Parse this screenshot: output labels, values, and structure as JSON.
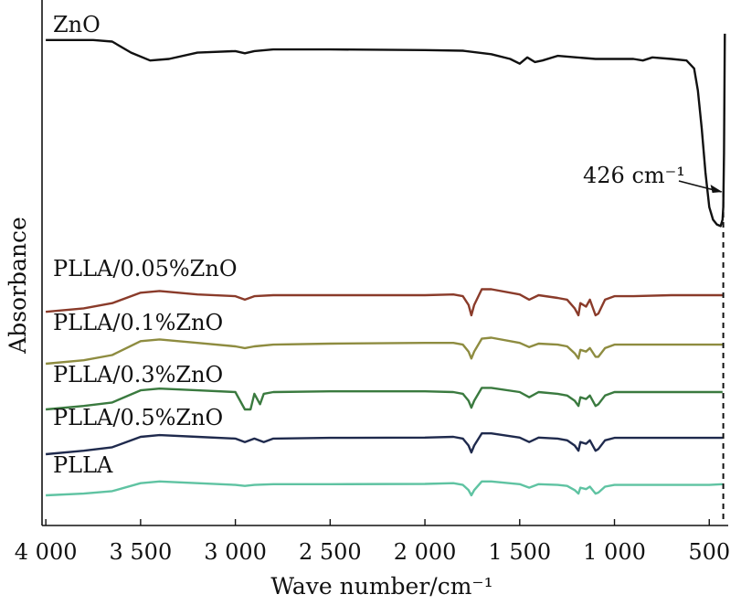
{
  "chart_data": {
    "type": "line",
    "xlabel": "Wave number/cm⁻¹",
    "ylabel": "Absorbance",
    "xlim": [
      4020,
      400
    ],
    "x_reversed": true,
    "grid": false,
    "xticks": [
      {
        "value": 4000,
        "label": "4 000"
      },
      {
        "value": 3500,
        "label": "3 500"
      },
      {
        "value": 3000,
        "label": "3 000"
      },
      {
        "value": 2500,
        "label": "2 500"
      },
      {
        "value": 2000,
        "label": "2 000"
      },
      {
        "value": 1500,
        "label": "1 500"
      },
      {
        "value": 1000,
        "label": "1 000"
      },
      {
        "value": 500,
        "label": "500"
      }
    ],
    "annotations": [
      {
        "text": "426 cm⁻¹",
        "x": 426,
        "style": "dashed-vertical-line-with-arrow"
      }
    ],
    "series": [
      {
        "name": "ZnO",
        "color": "#111111",
        "points": [
          [
            4000,
            0.96
          ],
          [
            3750,
            0.96
          ],
          [
            3650,
            0.955
          ],
          [
            3550,
            0.92
          ],
          [
            3450,
            0.895
          ],
          [
            3350,
            0.9
          ],
          [
            3200,
            0.92
          ],
          [
            3000,
            0.925
          ],
          [
            2950,
            0.918
          ],
          [
            2900,
            0.925
          ],
          [
            2800,
            0.93
          ],
          [
            2500,
            0.93
          ],
          [
            2000,
            0.928
          ],
          [
            1800,
            0.926
          ],
          [
            1650,
            0.915
          ],
          [
            1550,
            0.9
          ],
          [
            1500,
            0.885
          ],
          [
            1460,
            0.905
          ],
          [
            1420,
            0.89
          ],
          [
            1380,
            0.895
          ],
          [
            1300,
            0.91
          ],
          [
            1200,
            0.905
          ],
          [
            1100,
            0.9
          ],
          [
            1000,
            0.9
          ],
          [
            900,
            0.9
          ],
          [
            850,
            0.895
          ],
          [
            800,
            0.905
          ],
          [
            700,
            0.9
          ],
          [
            620,
            0.895
          ],
          [
            580,
            0.87
          ],
          [
            560,
            0.8
          ],
          [
            540,
            0.68
          ],
          [
            520,
            0.54
          ],
          [
            500,
            0.43
          ],
          [
            480,
            0.39
          ],
          [
            460,
            0.375
          ],
          [
            440,
            0.37
          ],
          [
            430,
            0.39
          ],
          [
            426,
            0.43
          ],
          [
            422,
            0.6
          ],
          [
            418,
            0.98
          ]
        ]
      },
      {
        "name": "PLLA/0.05%ZnO",
        "color": "#8a3b2a",
        "points": [
          [
            4000,
            0.01
          ],
          [
            3800,
            0.02
          ],
          [
            3650,
            0.035
          ],
          [
            3500,
            0.065
          ],
          [
            3400,
            0.07
          ],
          [
            3200,
            0.06
          ],
          [
            3000,
            0.055
          ],
          [
            2950,
            0.045
          ],
          [
            2900,
            0.055
          ],
          [
            2800,
            0.058
          ],
          [
            2500,
            0.058
          ],
          [
            2000,
            0.058
          ],
          [
            1850,
            0.06
          ],
          [
            1800,
            0.055
          ],
          [
            1770,
            0.03
          ],
          [
            1755,
            0.0
          ],
          [
            1740,
            0.03
          ],
          [
            1700,
            0.075
          ],
          [
            1650,
            0.075
          ],
          [
            1500,
            0.06
          ],
          [
            1450,
            0.045
          ],
          [
            1400,
            0.058
          ],
          [
            1300,
            0.05
          ],
          [
            1250,
            0.045
          ],
          [
            1210,
            0.02
          ],
          [
            1190,
            0.0
          ],
          [
            1180,
            0.035
          ],
          [
            1150,
            0.025
          ],
          [
            1130,
            0.045
          ],
          [
            1100,
            0.0
          ],
          [
            1085,
            0.005
          ],
          [
            1050,
            0.045
          ],
          [
            1000,
            0.055
          ],
          [
            900,
            0.055
          ],
          [
            700,
            0.058
          ],
          [
            500,
            0.058
          ],
          [
            430,
            0.058
          ]
        ]
      },
      {
        "name": "PLLA/0.1%ZnO",
        "color": "#8e8c40",
        "points": [
          [
            4000,
            0.0
          ],
          [
            3800,
            0.01
          ],
          [
            3650,
            0.025
          ],
          [
            3500,
            0.065
          ],
          [
            3400,
            0.07
          ],
          [
            3200,
            0.06
          ],
          [
            3000,
            0.05
          ],
          [
            2950,
            0.045
          ],
          [
            2900,
            0.05
          ],
          [
            2800,
            0.055
          ],
          [
            2500,
            0.058
          ],
          [
            2000,
            0.06
          ],
          [
            1850,
            0.06
          ],
          [
            1800,
            0.055
          ],
          [
            1770,
            0.035
          ],
          [
            1755,
            0.015
          ],
          [
            1740,
            0.035
          ],
          [
            1700,
            0.072
          ],
          [
            1650,
            0.075
          ],
          [
            1500,
            0.06
          ],
          [
            1450,
            0.048
          ],
          [
            1400,
            0.058
          ],
          [
            1300,
            0.055
          ],
          [
            1250,
            0.05
          ],
          [
            1210,
            0.03
          ],
          [
            1190,
            0.015
          ],
          [
            1180,
            0.04
          ],
          [
            1150,
            0.035
          ],
          [
            1130,
            0.045
          ],
          [
            1100,
            0.02
          ],
          [
            1085,
            0.02
          ],
          [
            1050,
            0.045
          ],
          [
            1000,
            0.055
          ],
          [
            900,
            0.055
          ],
          [
            700,
            0.055
          ],
          [
            500,
            0.055
          ],
          [
            430,
            0.055
          ]
        ]
      },
      {
        "name": "PLLA/0.3%ZnO",
        "color": "#3a7a3f",
        "points": [
          [
            4000,
            0.0
          ],
          [
            3800,
            0.01
          ],
          [
            3650,
            0.02
          ],
          [
            3500,
            0.055
          ],
          [
            3400,
            0.06
          ],
          [
            3200,
            0.055
          ],
          [
            3000,
            0.05
          ],
          [
            2950,
            0.0
          ],
          [
            2920,
            0.0
          ],
          [
            2900,
            0.045
          ],
          [
            2870,
            0.015
          ],
          [
            2850,
            0.045
          ],
          [
            2800,
            0.05
          ],
          [
            2500,
            0.052
          ],
          [
            2000,
            0.052
          ],
          [
            1850,
            0.05
          ],
          [
            1800,
            0.045
          ],
          [
            1770,
            0.025
          ],
          [
            1755,
            0.005
          ],
          [
            1740,
            0.025
          ],
          [
            1700,
            0.062
          ],
          [
            1650,
            0.062
          ],
          [
            1500,
            0.05
          ],
          [
            1450,
            0.035
          ],
          [
            1400,
            0.05
          ],
          [
            1300,
            0.045
          ],
          [
            1250,
            0.04
          ],
          [
            1210,
            0.025
          ],
          [
            1190,
            0.01
          ],
          [
            1180,
            0.035
          ],
          [
            1150,
            0.03
          ],
          [
            1130,
            0.04
          ],
          [
            1100,
            0.01
          ],
          [
            1085,
            0.015
          ],
          [
            1050,
            0.04
          ],
          [
            1000,
            0.05
          ],
          [
            900,
            0.05
          ],
          [
            700,
            0.05
          ],
          [
            500,
            0.05
          ],
          [
            430,
            0.05
          ]
        ]
      },
      {
        "name": "PLLA/0.5%ZnO",
        "color": "#1f2a4d",
        "points": [
          [
            4000,
            0.0
          ],
          [
            3800,
            0.01
          ],
          [
            3650,
            0.02
          ],
          [
            3500,
            0.05
          ],
          [
            3400,
            0.055
          ],
          [
            3200,
            0.05
          ],
          [
            3000,
            0.045
          ],
          [
            2950,
            0.035
          ],
          [
            2900,
            0.045
          ],
          [
            2850,
            0.035
          ],
          [
            2800,
            0.045
          ],
          [
            2500,
            0.047
          ],
          [
            2000,
            0.048
          ],
          [
            1850,
            0.05
          ],
          [
            1800,
            0.045
          ],
          [
            1770,
            0.025
          ],
          [
            1755,
            0.005
          ],
          [
            1740,
            0.025
          ],
          [
            1700,
            0.06
          ],
          [
            1650,
            0.06
          ],
          [
            1500,
            0.048
          ],
          [
            1450,
            0.035
          ],
          [
            1400,
            0.048
          ],
          [
            1300,
            0.045
          ],
          [
            1250,
            0.04
          ],
          [
            1210,
            0.025
          ],
          [
            1190,
            0.01
          ],
          [
            1180,
            0.035
          ],
          [
            1150,
            0.03
          ],
          [
            1130,
            0.04
          ],
          [
            1100,
            0.01
          ],
          [
            1085,
            0.015
          ],
          [
            1050,
            0.04
          ],
          [
            1000,
            0.047
          ],
          [
            900,
            0.047
          ],
          [
            700,
            0.047
          ],
          [
            500,
            0.047
          ],
          [
            430,
            0.047
          ]
        ]
      },
      {
        "name": "PLLA",
        "color": "#5fc3a2",
        "points": [
          [
            4000,
            0.0
          ],
          [
            3800,
            0.005
          ],
          [
            3650,
            0.012
          ],
          [
            3500,
            0.035
          ],
          [
            3400,
            0.04
          ],
          [
            3200,
            0.035
          ],
          [
            3000,
            0.03
          ],
          [
            2950,
            0.027
          ],
          [
            2900,
            0.03
          ],
          [
            2800,
            0.032
          ],
          [
            2500,
            0.032
          ],
          [
            2000,
            0.033
          ],
          [
            1850,
            0.035
          ],
          [
            1800,
            0.03
          ],
          [
            1770,
            0.015
          ],
          [
            1755,
            0.0
          ],
          [
            1740,
            0.015
          ],
          [
            1700,
            0.04
          ],
          [
            1650,
            0.04
          ],
          [
            1500,
            0.032
          ],
          [
            1450,
            0.022
          ],
          [
            1400,
            0.032
          ],
          [
            1300,
            0.03
          ],
          [
            1250,
            0.027
          ],
          [
            1210,
            0.015
          ],
          [
            1190,
            0.005
          ],
          [
            1180,
            0.022
          ],
          [
            1150,
            0.018
          ],
          [
            1130,
            0.025
          ],
          [
            1100,
            0.005
          ],
          [
            1085,
            0.008
          ],
          [
            1050,
            0.025
          ],
          [
            1000,
            0.03
          ],
          [
            900,
            0.03
          ],
          [
            700,
            0.03
          ],
          [
            500,
            0.03
          ],
          [
            430,
            0.032
          ]
        ]
      }
    ]
  }
}
